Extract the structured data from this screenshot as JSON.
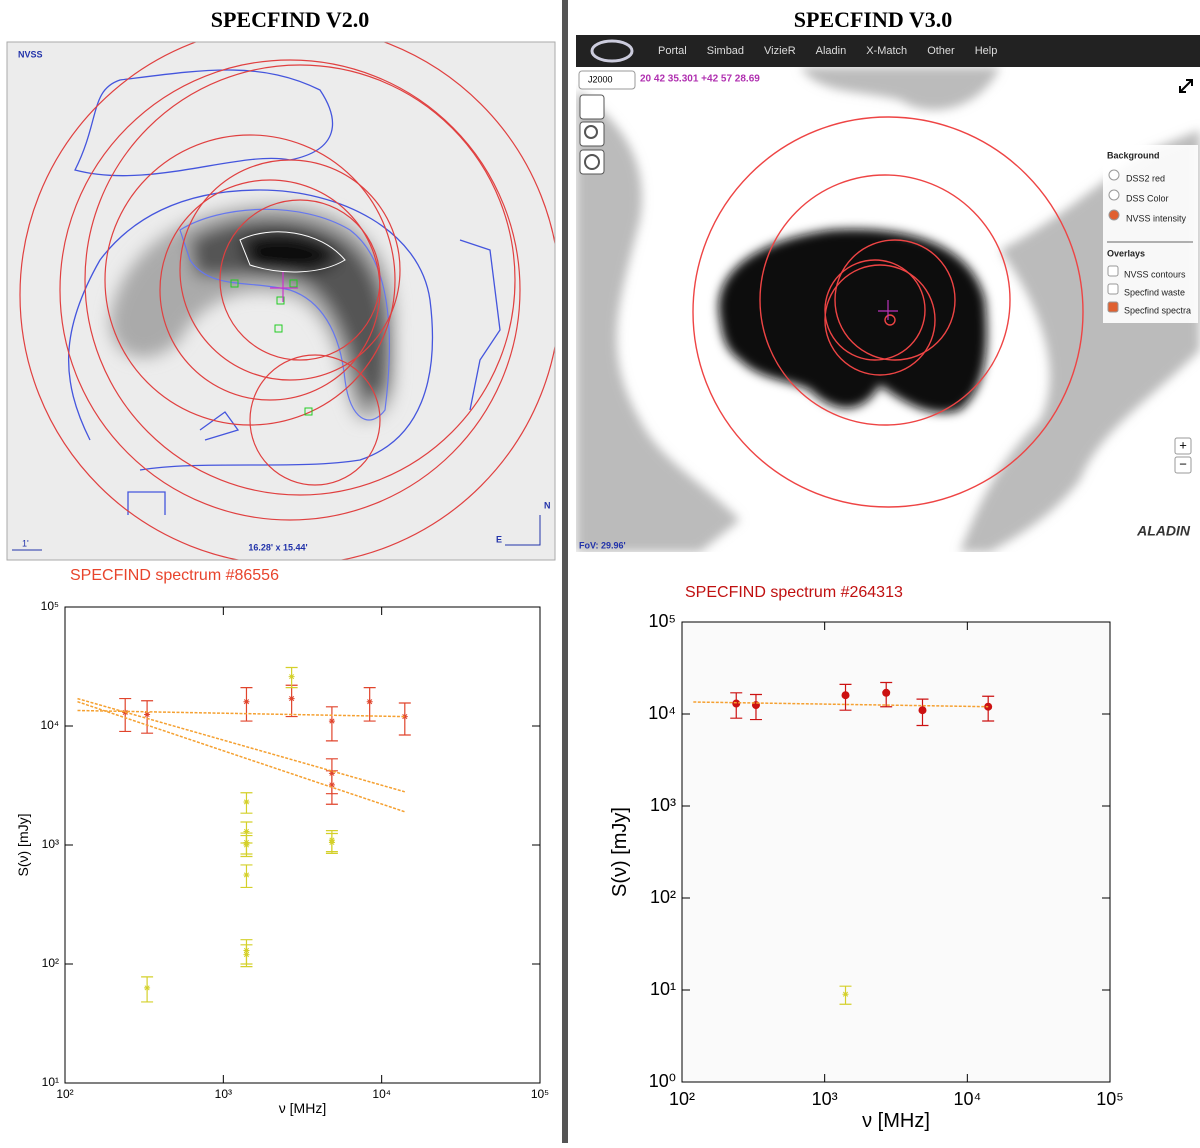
{
  "panels": [
    {
      "title": "SPECFIND V2.0",
      "map_labels": [
        "NVSS",
        "1'",
        "16.28' x 15.44'",
        "N",
        "E"
      ]
    },
    {
      "title": "SPECFIND V3.0",
      "menu": [
        "Portal",
        "Simbad",
        "VizieR",
        "Aladin",
        "X-Match",
        "Other",
        "Help"
      ],
      "frame": "J2000",
      "coords": "20 42 35.301 +42 57 28.69",
      "fov": "FoV: 29.96'",
      "logo": "ALADIN",
      "background_title": "Background",
      "background": [
        "DSS2 red",
        "DSS Color",
        "NVSS intensity"
      ],
      "overlays_title": "Overlays",
      "overlays": [
        "NVSS contours",
        "Specfind waste",
        "Specfind spectra"
      ],
      "zoom": [
        "+",
        "−"
      ]
    }
  ],
  "chart_data": [
    {
      "type": "scatter",
      "title": "SPECFIND spectrum #86556",
      "xlabel": "ν [MHz]",
      "ylabel": "S(ν) [mJy]",
      "log": true,
      "xlim": [
        100,
        100000
      ],
      "ylim": [
        10,
        100000
      ],
      "xticks": [
        {
          "value": 100,
          "label": "10²"
        },
        {
          "value": 1000,
          "label": "10³"
        },
        {
          "value": 10000,
          "label": "10⁴"
        },
        {
          "value": 100000,
          "label": "10⁵"
        }
      ],
      "yticks": [
        {
          "value": 10,
          "label": "10¹"
        },
        {
          "value": 100,
          "label": "10²"
        },
        {
          "value": 1000,
          "label": "10³"
        },
        {
          "value": 10000,
          "label": "10⁴"
        },
        {
          "value": 100000,
          "label": "10⁵"
        }
      ],
      "series": [
        {
          "color": "#e0442c",
          "marker": "star",
          "x": [
            240,
            330,
            1400,
            2700,
            4850,
            4850,
            4850,
            8400,
            14000
          ],
          "values": [
            13000,
            12500,
            16000,
            17000,
            11000,
            4000,
            3200,
            16000,
            12000
          ],
          "errors": [
            4000,
            3800,
            5000,
            5000,
            3500,
            1300,
            1000,
            5000,
            3600
          ]
        },
        {
          "color": "#d4d02a",
          "marker": "star",
          "x": [
            330,
            1400,
            1400,
            1400,
            1400,
            1400,
            1400,
            1400,
            2700,
            4850,
            4850
          ],
          "values": [
            63,
            2300,
            1300,
            1050,
            1000,
            560,
            130,
            120,
            26000,
            1050,
            1100
          ],
          "errors": [
            15,
            450,
            260,
            210,
            200,
            120,
            30,
            25,
            5000,
            200,
            220
          ]
        },
        {
          "color": "#f5a030",
          "marker": "line",
          "x": [
            120,
            14000
          ],
          "values": [
            13500,
            12000
          ]
        },
        {
          "color": "#f5a030",
          "marker": "line",
          "x": [
            120,
            14000
          ],
          "values": [
            17000,
            2800
          ]
        },
        {
          "color": "#f5a030",
          "marker": "line",
          "x": [
            120,
            14000
          ],
          "values": [
            16000,
            1900
          ]
        }
      ]
    },
    {
      "type": "scatter",
      "title": "SPECFIND spectrum #264313",
      "xlabel": "ν [MHz]",
      "ylabel": "S(ν) [mJy]",
      "log": true,
      "xlim": [
        100,
        100000
      ],
      "ylim": [
        1,
        100000
      ],
      "xticks": [
        {
          "value": 100,
          "label": "10²"
        },
        {
          "value": 1000,
          "label": "10³"
        },
        {
          "value": 10000,
          "label": "10⁴"
        },
        {
          "value": 100000,
          "label": "10⁵"
        }
      ],
      "yticks": [
        {
          "value": 1,
          "label": "10⁰"
        },
        {
          "value": 10,
          "label": "10¹"
        },
        {
          "value": 100,
          "label": "10²"
        },
        {
          "value": 1000,
          "label": "10³"
        },
        {
          "value": 10000,
          "label": "10⁴"
        },
        {
          "value": 100000,
          "label": "10⁵"
        }
      ],
      "series": [
        {
          "color": "#cc1111",
          "marker": "dot",
          "x": [
            240,
            330,
            1400,
            2700,
            4850,
            14000
          ],
          "values": [
            13000,
            12500,
            16000,
            17000,
            11000,
            12000
          ],
          "errors": [
            4000,
            3800,
            5000,
            5000,
            3500,
            3600
          ]
        },
        {
          "color": "#d4d02a",
          "marker": "star",
          "x": [
            1400
          ],
          "values": [
            9
          ],
          "errors": [
            2
          ]
        },
        {
          "color": "#f5a030",
          "marker": "line",
          "x": [
            120,
            14000
          ],
          "values": [
            13500,
            12000
          ]
        }
      ]
    }
  ]
}
